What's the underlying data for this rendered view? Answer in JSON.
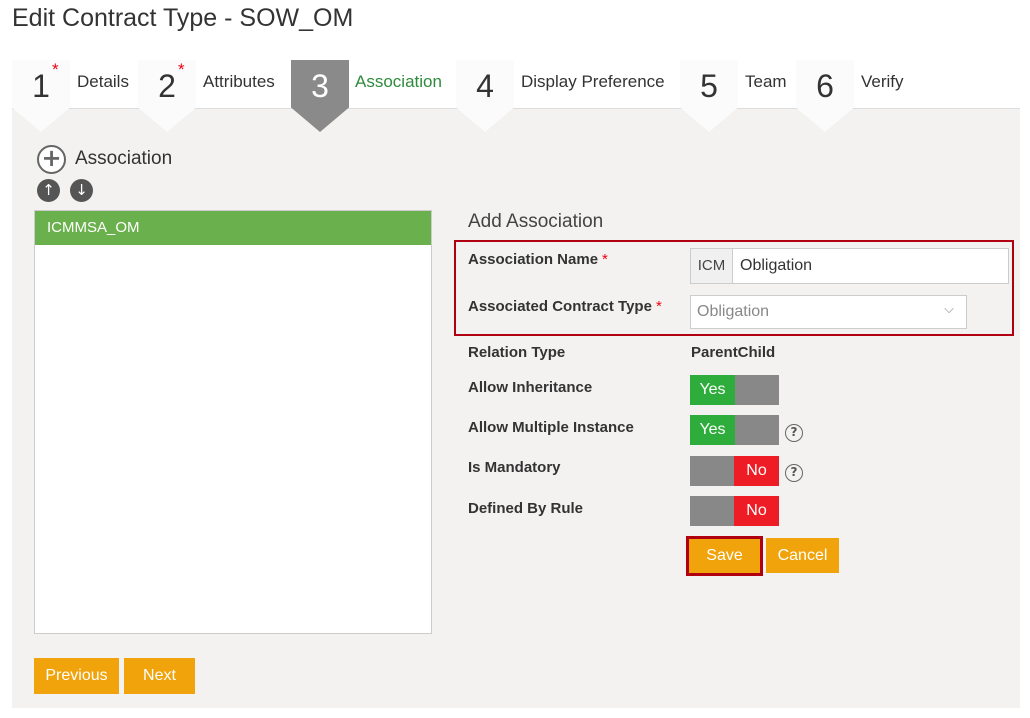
{
  "title": "Edit Contract Type - SOW_OM",
  "steps": [
    {
      "num": "1",
      "label": "Details",
      "required": true
    },
    {
      "num": "2",
      "label": "Attributes",
      "required": true
    },
    {
      "num": "3",
      "label": "Association",
      "active": true
    },
    {
      "num": "4",
      "label": "Display Preference"
    },
    {
      "num": "5",
      "label": "Team"
    },
    {
      "num": "6",
      "label": "Verify"
    }
  ],
  "add_association_label": "Association",
  "associations": [
    "ICMMSA_OM"
  ],
  "form": {
    "heading": "Add Association",
    "name_label": "Association Name",
    "name_prefix": "ICM",
    "name_value": "Obligation",
    "type_label": "Associated Contract Type",
    "type_value": "Obligation",
    "required_mark": "*",
    "relation_label": "Relation Type",
    "relation_value": "ParentChild",
    "inherit_label": "Allow Inheritance",
    "inherit_value": "Yes",
    "multiple_label": "Allow Multiple Instance",
    "multiple_value": "Yes",
    "mandatory_label": "Is Mandatory",
    "mandatory_value": "No",
    "rule_label": "Defined By Rule",
    "rule_value": "No",
    "help": "?",
    "save": "Save",
    "cancel": "Cancel"
  },
  "nav": {
    "previous": "Previous",
    "next": "Next"
  },
  "colors": {
    "accent": "#f0a30a",
    "yes": "#2eac3c",
    "no": "#ee1c24",
    "selected": "#6ab04c",
    "highlight": "#b00010"
  }
}
